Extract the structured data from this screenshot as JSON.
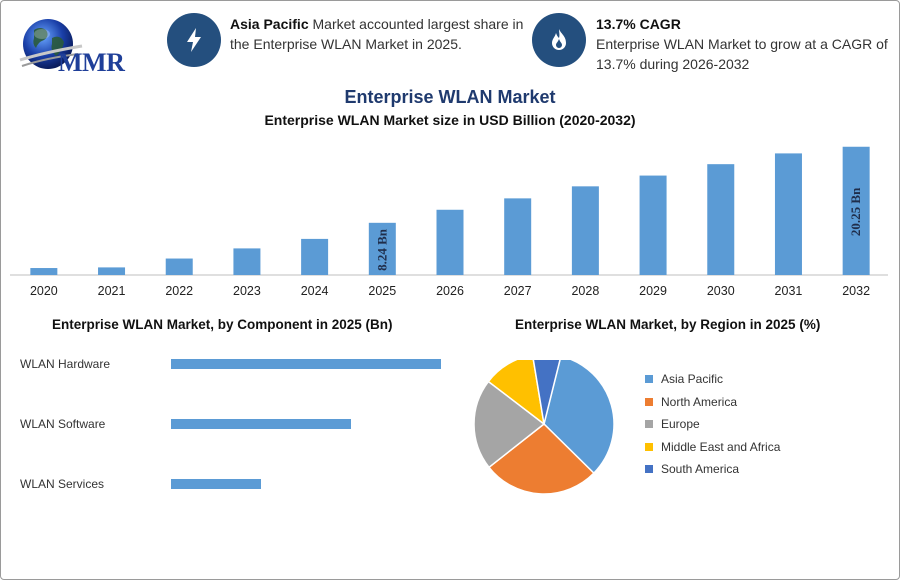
{
  "header": {
    "logo_text": "MMR",
    "info1_bold": "Asia Pacific",
    "info1_rest": " Market accounted largest share in the Enterprise WLAN Market in 2025.",
    "info2_bold": "13.7% CAGR",
    "info2_rest": "Enterprise WLAN Market to grow at a CAGR of 13.7% during 2026-2032",
    "accent": "#244f7e"
  },
  "title": "Enterprise WLAN Market",
  "chart_data": [
    {
      "type": "bar",
      "title": "Enterprise WLAN Market size in USD Billion (2020-2032)",
      "categories": [
        "2020",
        "2021",
        "2022",
        "2023",
        "2024",
        "2025",
        "2026",
        "2027",
        "2028",
        "2029",
        "2030",
        "2031",
        "2032"
      ],
      "values": [
        1.1,
        1.2,
        2.6,
        4.2,
        5.7,
        8.24,
        10.3,
        12.1,
        14.0,
        15.7,
        17.5,
        19.2,
        20.25
      ],
      "data_labels": [
        null,
        null,
        null,
        null,
        null,
        "8.24 Bn",
        null,
        null,
        null,
        null,
        null,
        null,
        "20.25 Bn"
      ],
      "ylim": [
        0,
        21
      ],
      "color": "#5b9bd5"
    },
    {
      "type": "bar",
      "orientation": "horizontal",
      "title": "Enterprise WLAN Market, by Component in 2025 (Bn)",
      "categories": [
        "WLAN Hardware",
        "WLAN Software",
        "WLAN Services"
      ],
      "values": [
        3.92,
        2.62,
        1.31
      ],
      "xlim": [
        0,
        3.92
      ],
      "color": "#5b9bd5"
    },
    {
      "type": "pie",
      "title": "Enterprise WLAN Market, by Region in 2025 (%)",
      "labels": [
        "Asia Pacific",
        "North America",
        "Europe",
        "Middle East and Africa",
        "South America"
      ],
      "values": [
        33.5,
        27,
        21,
        12,
        6.5
      ],
      "colors": [
        "#5b9bd5",
        "#ed7d31",
        "#a5a5a5",
        "#ffc000",
        "#4472c4"
      ]
    }
  ]
}
